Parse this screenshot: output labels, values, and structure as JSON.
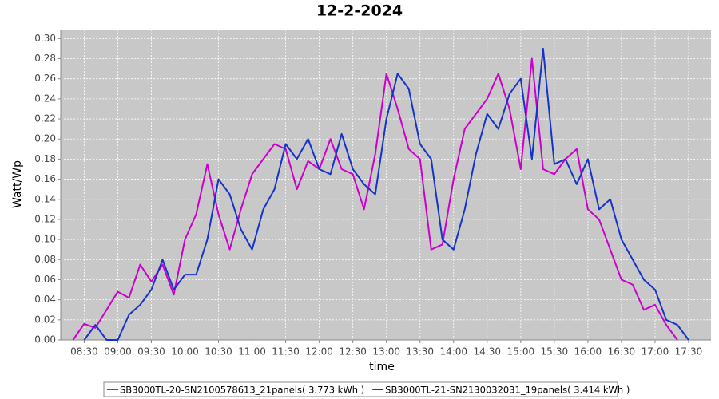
{
  "chart_data": {
    "type": "line",
    "title": "12-2-2024",
    "x_label": "time",
    "y_label": "Watt/Wp",
    "x": [
      "08:20",
      "08:30",
      "08:40",
      "08:50",
      "09:00",
      "09:10",
      "09:20",
      "09:30",
      "09:40",
      "09:50",
      "10:00",
      "10:10",
      "10:20",
      "10:30",
      "10:40",
      "10:50",
      "11:00",
      "11:10",
      "11:20",
      "11:30",
      "11:40",
      "11:50",
      "12:00",
      "12:10",
      "12:20",
      "12:30",
      "12:40",
      "12:50",
      "13:00",
      "13:10",
      "13:20",
      "13:30",
      "13:40",
      "13:50",
      "14:00",
      "14:10",
      "14:20",
      "14:30",
      "14:40",
      "14:50",
      "15:00",
      "15:10",
      "15:20",
      "15:30",
      "15:40",
      "15:50",
      "16:00",
      "16:10",
      "16:20",
      "16:30",
      "16:40",
      "16:50",
      "17:00",
      "17:10",
      "17:20",
      "17:30"
    ],
    "series": [
      {
        "name": "SB3000TL-20-SN2100578613_21panels( 3.773 kWh )",
        "color": "#cc00cc",
        "values": [
          0,
          0.016,
          0.012,
          0.03,
          0.048,
          0.042,
          0.075,
          0.058,
          0.075,
          0.045,
          0.1,
          0.125,
          0.175,
          0.125,
          0.09,
          0.13,
          0.165,
          0.18,
          0.195,
          0.19,
          0.15,
          0.178,
          0.17,
          0.2,
          0.17,
          0.165,
          0.13,
          0.185,
          0.265,
          0.23,
          0.19,
          0.18,
          0.09,
          0.095,
          0.16,
          0.21,
          0.225,
          0.24,
          0.265,
          0.23,
          0.17,
          0.28,
          0.17,
          0.165,
          0.18,
          0.19,
          0.13,
          0.12,
          0.09,
          0.06,
          0.055,
          0.03,
          0.035,
          0.015,
          0,
          null
        ]
      },
      {
        "name": "SB3000TL-21-SN2130032031_19panels( 3.414 kWh )",
        "color": "#1533c8",
        "values": [
          null,
          0,
          0.015,
          0,
          0,
          0.025,
          0.035,
          0.05,
          0.08,
          0.05,
          0.065,
          0.065,
          0.1,
          0.16,
          0.145,
          0.11,
          0.09,
          0.13,
          0.15,
          0.195,
          0.18,
          0.2,
          0.17,
          0.165,
          0.205,
          0.17,
          0.155,
          0.145,
          0.22,
          0.265,
          0.25,
          0.195,
          0.18,
          0.1,
          0.09,
          0.13,
          0.185,
          0.225,
          0.21,
          0.245,
          0.26,
          0.18,
          0.29,
          0.175,
          0.18,
          0.155,
          0.18,
          0.13,
          0.14,
          0.1,
          0.08,
          0.06,
          0.05,
          0.02,
          0.015,
          0
        ]
      }
    ],
    "xlim": [
      "08:09",
      "17:50"
    ],
    "xticks": [
      "08:30",
      "09:00",
      "09:30",
      "10:00",
      "10:30",
      "11:00",
      "11:30",
      "12:00",
      "12:30",
      "13:00",
      "13:30",
      "14:00",
      "14:30",
      "15:00",
      "15:30",
      "16:00",
      "16:30",
      "17:00",
      "17:30"
    ],
    "ylim": [
      0,
      0.309
    ],
    "yticks": [
      {
        "value": 0,
        "label": "0.00"
      },
      {
        "value": 0.02,
        "label": "0.02"
      },
      {
        "value": 0.04,
        "label": "0.04"
      },
      {
        "value": 0.06,
        "label": "0.06"
      },
      {
        "value": 0.08,
        "label": "0.08"
      },
      {
        "value": 0.1,
        "label": "0.10"
      },
      {
        "value": 0.12,
        "label": "0.12"
      },
      {
        "value": 0.14,
        "label": "0.14"
      },
      {
        "value": 0.16,
        "label": "0.16"
      },
      {
        "value": 0.18,
        "label": "0.18"
      },
      {
        "value": 0.2,
        "label": "0.20"
      },
      {
        "value": 0.22,
        "label": "0.22"
      },
      {
        "value": 0.24,
        "label": "0.24"
      },
      {
        "value": 0.26,
        "label": "0.26"
      },
      {
        "value": 0.28,
        "label": "0.28"
      },
      {
        "value": 0.3,
        "label": "0.30"
      }
    ],
    "grid": true,
    "legend": "bottom"
  }
}
